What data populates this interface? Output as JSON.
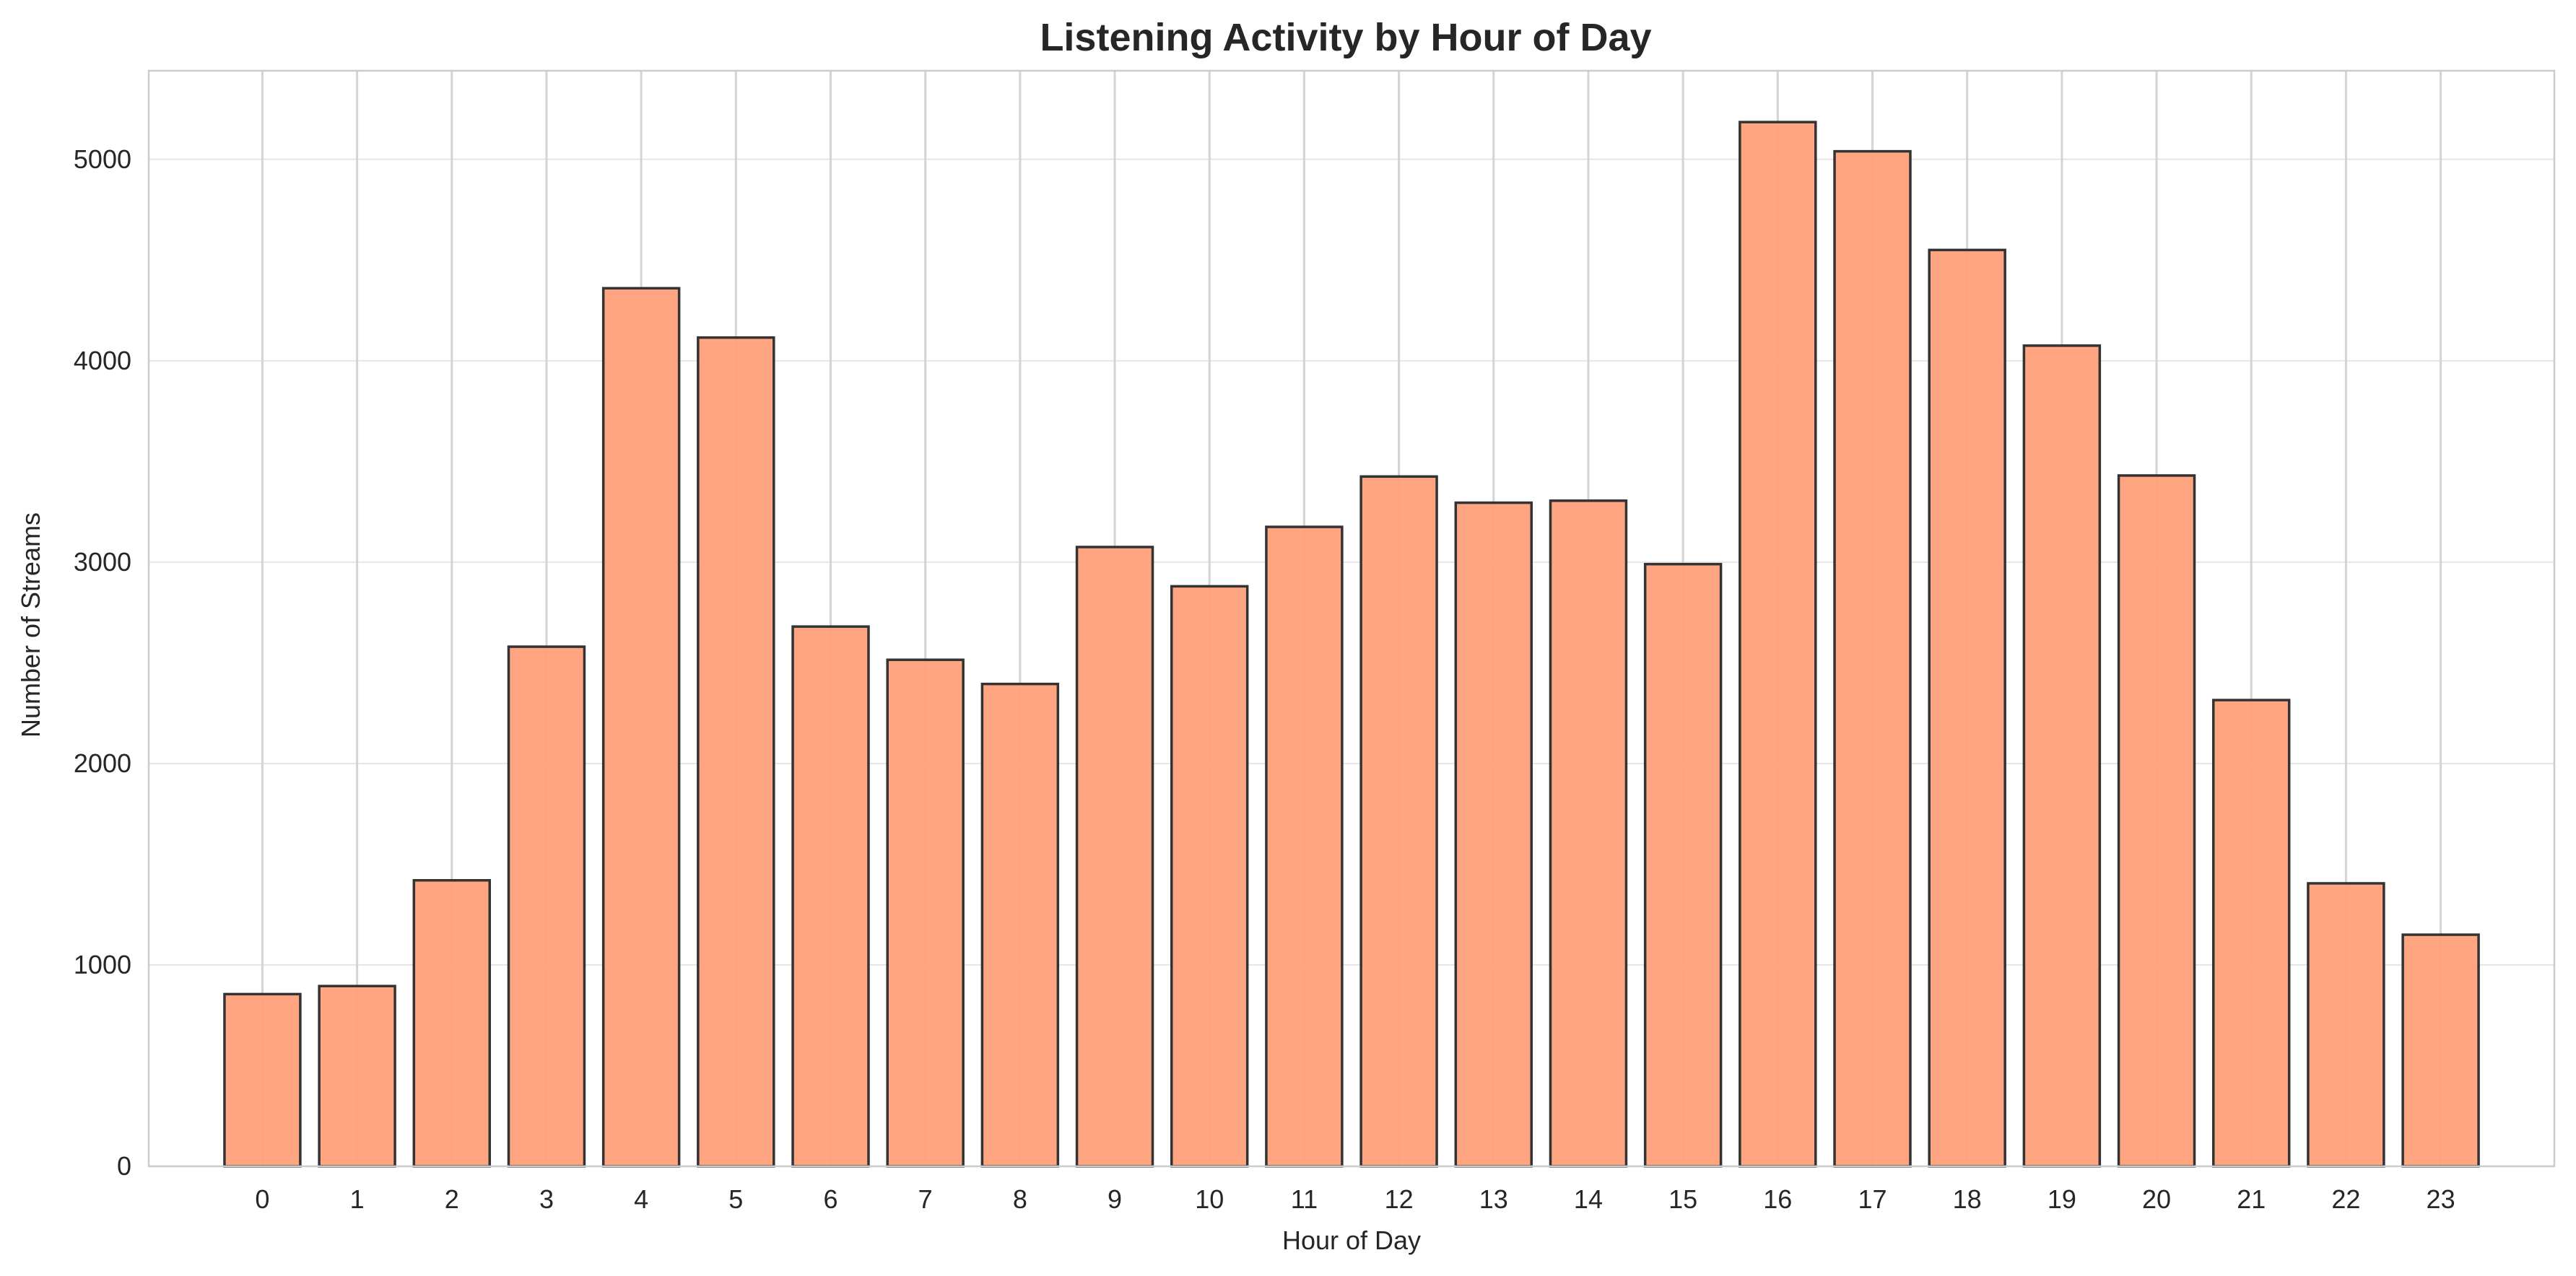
{
  "chart_data": {
    "type": "bar",
    "title": "Listening Activity by Hour of Day",
    "xlabel": "Hour of Day",
    "ylabel": "Number of Streams",
    "categories": [
      "0",
      "1",
      "2",
      "3",
      "4",
      "5",
      "6",
      "7",
      "8",
      "9",
      "10",
      "11",
      "12",
      "13",
      "14",
      "15",
      "16",
      "17",
      "18",
      "19",
      "20",
      "21",
      "22",
      "23"
    ],
    "values": [
      855,
      895,
      1420,
      2580,
      4360,
      4115,
      2680,
      2515,
      2395,
      3075,
      2880,
      3175,
      3425,
      3295,
      3305,
      2990,
      5185,
      5040,
      4550,
      4075,
      3430,
      2315,
      1405,
      1150
    ],
    "ylim": [
      0,
      5440
    ],
    "yticks": [
      0,
      1000,
      2000,
      3000,
      4000,
      5000
    ],
    "grid": true,
    "colors": {
      "bar_fill": "#ffa07a",
      "bar_edge": "#333333",
      "grid": "#e6e6e6",
      "spine": "#cccccc"
    }
  }
}
